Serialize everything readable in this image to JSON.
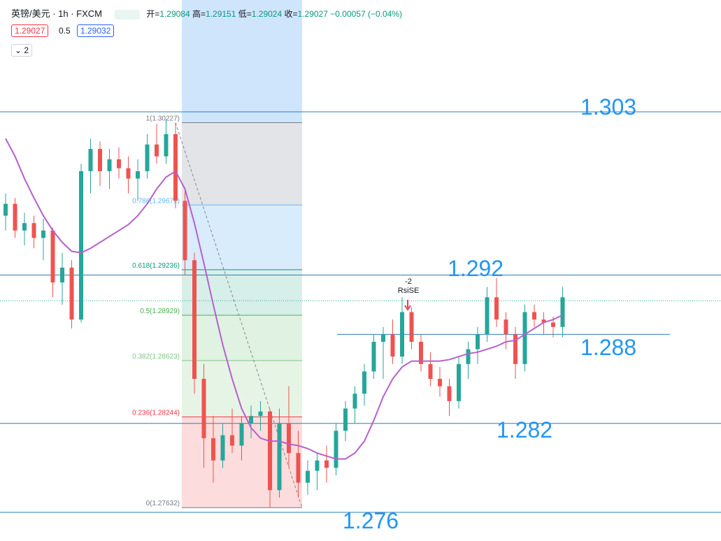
{
  "header": {
    "symbol": "英镑/美元 · 1h · FXCM",
    "open_label": "开=",
    "open": 1.29084,
    "high_label": "高=",
    "high": 1.29151,
    "low_label": "低=",
    "low": 1.29024,
    "close_label": "收=",
    "close": 1.29027,
    "change": "−0.00057 (−0.04%)",
    "bid": "1.29027",
    "spread": "0.5",
    "ask": "1.29032",
    "indicators_count": "2"
  },
  "chart_data": {
    "type": "candlestick",
    "ylim": [
      1.27407,
      1.31054
    ],
    "open": [
      1.296,
      1.2968,
      1.295,
      1.2955,
      1.2945,
      1.295,
      1.2915,
      1.2925,
      1.289,
      1.299,
      1.3005,
      1.299,
      1.2998,
      1.2992,
      1.2985,
      1.299,
      1.3008,
      1.3,
      1.3015,
      1.297,
      1.293,
      1.285,
      1.281,
      1.2795,
      1.2812,
      1.2805,
      1.282,
      1.2825,
      1.2828,
      1.2775,
      1.282,
      1.28,
      1.278,
      1.2788,
      1.2795,
      1.279,
      1.2815,
      1.283,
      1.284,
      1.2855,
      1.2875,
      1.288,
      1.2865,
      1.2895,
      1.2875,
      1.286,
      1.285,
      1.2845,
      1.2835,
      1.286,
      1.287,
      1.288,
      1.2905,
      1.289,
      1.288,
      1.286,
      1.2895,
      1.289,
      1.2888,
      1.2885
    ],
    "high": [
      1.2975,
      1.2972,
      1.2962,
      1.296,
      1.2958,
      1.2952,
      1.2935,
      1.293,
      1.2995,
      1.3012,
      1.301,
      1.3005,
      1.3006,
      1.3,
      1.2998,
      1.3015,
      1.3022,
      1.3025,
      1.30227,
      1.2978,
      1.2935,
      1.286,
      1.2825,
      1.282,
      1.283,
      1.2825,
      1.2832,
      1.2835,
      1.283,
      1.283,
      1.2845,
      1.2815,
      1.2795,
      1.28,
      1.2805,
      1.282,
      1.2835,
      1.2845,
      1.286,
      1.288,
      1.2885,
      1.289,
      1.2905,
      1.2898,
      1.288,
      1.2868,
      1.2858,
      1.285,
      1.2865,
      1.2875,
      1.2885,
      1.2912,
      1.2918,
      1.2895,
      1.2885,
      1.29,
      1.29,
      1.2895,
      1.2892,
      1.2912
    ],
    "low": [
      1.295,
      1.2945,
      1.294,
      1.2938,
      1.293,
      1.2905,
      1.29,
      1.2884,
      1.2888,
      1.2975,
      1.298,
      1.2978,
      1.2985,
      1.2975,
      1.297,
      1.2985,
      1.2995,
      1.2995,
      1.2965,
      1.292,
      1.284,
      1.279,
      1.278,
      1.279,
      1.28,
      1.2795,
      1.281,
      1.2815,
      1.27632,
      1.277,
      1.279,
      1.277,
      1.2772,
      1.2775,
      1.278,
      1.2785,
      1.2808,
      1.282,
      1.2832,
      1.285,
      1.285,
      1.286,
      1.286,
      1.287,
      1.2855,
      1.2845,
      1.2838,
      1.2825,
      1.283,
      1.285,
      1.286,
      1.2875,
      1.2885,
      1.287,
      1.285,
      1.2855,
      1.2885,
      1.288,
      1.2878,
      1.2878
    ],
    "close": [
      1.2968,
      1.295,
      1.2955,
      1.2945,
      1.295,
      1.2915,
      1.2925,
      1.289,
      1.299,
      1.3005,
      1.299,
      1.2998,
      1.2992,
      1.2985,
      1.299,
      1.3008,
      1.3,
      1.3015,
      1.297,
      1.293,
      1.285,
      1.281,
      1.2795,
      1.2812,
      1.2805,
      1.282,
      1.2825,
      1.2828,
      1.2775,
      1.282,
      1.28,
      1.278,
      1.2788,
      1.2795,
      1.279,
      1.2815,
      1.283,
      1.284,
      1.2855,
      1.2875,
      1.288,
      1.2865,
      1.2895,
      1.2875,
      1.286,
      1.285,
      1.2845,
      1.2835,
      1.286,
      1.287,
      1.288,
      1.2905,
      1.289,
      1.288,
      1.286,
      1.2895,
      1.289,
      1.2888,
      1.2885,
      1.2905
    ],
    "ma": [
      1.3012,
      1.3,
      1.2985,
      1.2972,
      1.296,
      1.295,
      1.2942,
      1.2936,
      1.2935,
      1.2938,
      1.2942,
      1.2946,
      1.295,
      1.2954,
      1.296,
      1.2968,
      1.2978,
      1.2986,
      1.299,
      1.2978,
      1.2955,
      1.2928,
      1.29,
      1.2873,
      1.285,
      1.283,
      1.2817,
      1.281,
      1.2808,
      1.2808,
      1.2806,
      1.2805,
      1.2803,
      1.28,
      1.2798,
      1.2796,
      1.2796,
      1.28,
      1.2808,
      1.2822,
      1.2838,
      1.285,
      1.2858,
      1.2862,
      1.2862,
      1.2862,
      1.2862,
      1.2863,
      1.2865,
      1.2867,
      1.2868,
      1.287,
      1.2872,
      1.2875,
      1.2876,
      1.288,
      1.2884,
      1.2888,
      1.289,
      1.2893
    ],
    "up_color": "#26a69a",
    "down_color": "#ef5350",
    "ma_color": "#b660cd",
    "fib_levels": [
      {
        "value": 1.30227,
        "label": "1(1.30227)",
        "color": "#787b86"
      },
      {
        "value": 1.29672,
        "label": "0.786(1.29672)",
        "color": "#64b5f6"
      },
      {
        "value": 1.29236,
        "label": "0.618(1.29236)",
        "color": "#089981"
      },
      {
        "value": 1.28929,
        "label": "0.5(1.28929)",
        "color": "#4caf50"
      },
      {
        "value": 1.28623,
        "label": "0.382(1.28623)",
        "color": "#81c784"
      },
      {
        "value": 1.28244,
        "label": "0.236(1.28244)",
        "color": "#f23645"
      },
      {
        "value": 1.27632,
        "label": "0(1.27632)",
        "color": "#787b86"
      }
    ],
    "levels": [
      1.303,
      1.292,
      1.288,
      1.282,
      1.276
    ],
    "last_price": 1.29027,
    "annotation": {
      "count": "-2",
      "text": "RsiSE"
    }
  }
}
